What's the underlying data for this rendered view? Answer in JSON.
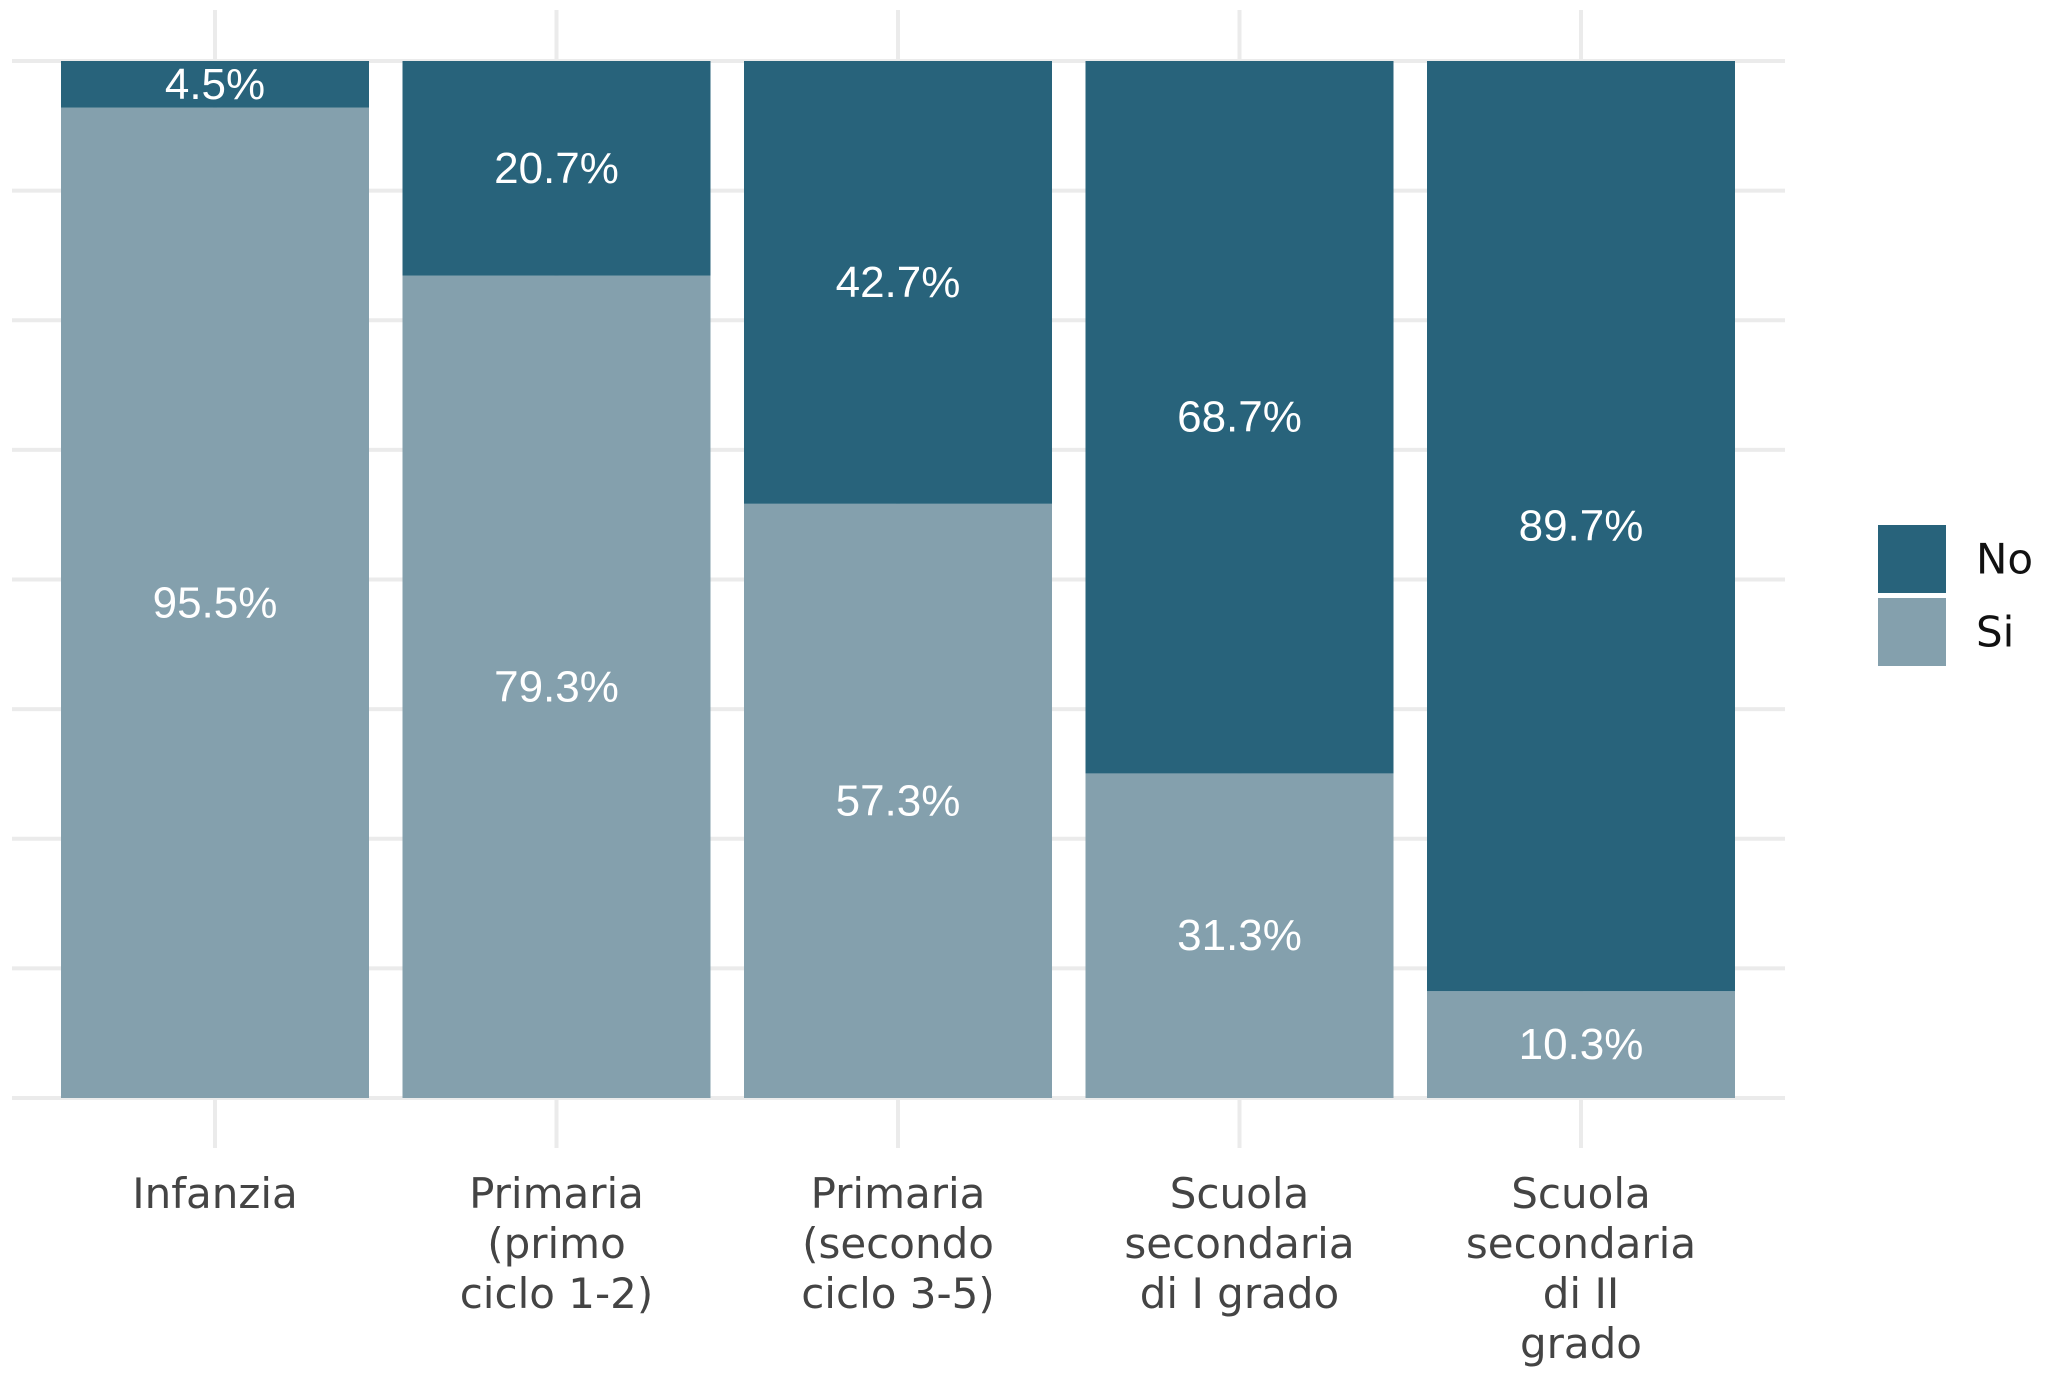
{
  "chart_data": {
    "type": "bar",
    "stacked": true,
    "percent_stacked": true,
    "categories": [
      [
        "Infanzia"
      ],
      [
        "Primaria",
        "(primo",
        "ciclo 1-2)"
      ],
      [
        "Primaria",
        "(secondo",
        "ciclo 3-5)"
      ],
      [
        "Scuola",
        "secondaria",
        "di I grado"
      ],
      [
        "Scuola",
        "secondaria",
        "di II",
        "grado"
      ]
    ],
    "series": [
      {
        "name": "Si",
        "color": "#84a0ad",
        "values": [
          95.5,
          79.3,
          57.3,
          31.3,
          10.3
        ],
        "labels": [
          "95.5%",
          "79.3%",
          "57.3%",
          "31.3%",
          "10.3%"
        ]
      },
      {
        "name": "No",
        "color": "#28637b",
        "values": [
          4.5,
          20.7,
          42.7,
          68.7,
          89.7
        ],
        "labels": [
          "4.5%",
          "20.7%",
          "42.7%",
          "68.7%",
          "89.7%"
        ]
      }
    ],
    "ylim": [
      0,
      100
    ],
    "grid": true,
    "legend_position": "right",
    "legend_order": [
      "No",
      "Si"
    ],
    "title": "",
    "xlabel": "",
    "ylabel": ""
  }
}
